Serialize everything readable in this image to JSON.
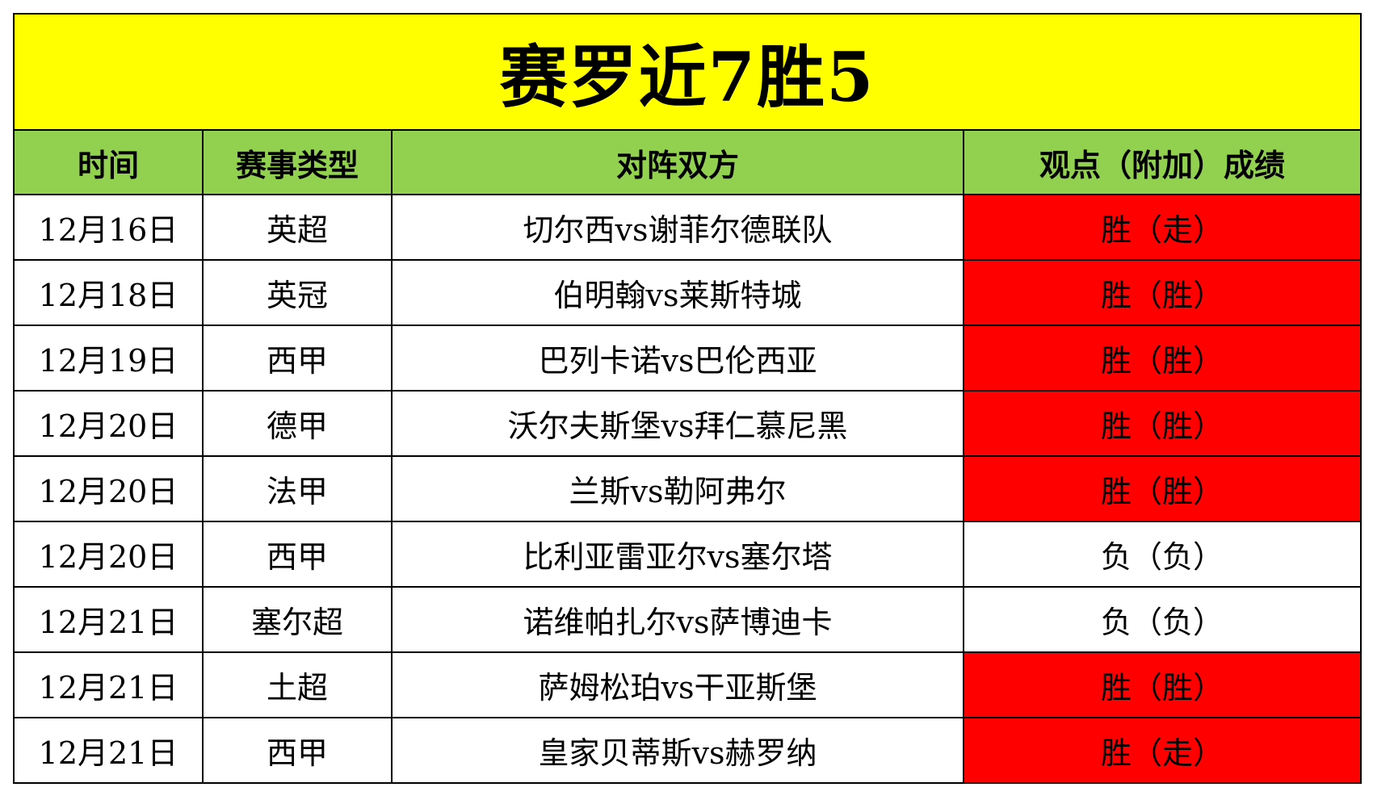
{
  "title": "赛罗近7胜5",
  "headers": {
    "time": "时间",
    "event_type": "赛事类型",
    "matchup": "对阵双方",
    "result": "观点（附加）成绩"
  },
  "colors": {
    "title_bg": "#ffff00",
    "header_bg": "#92d050",
    "win_bg": "#ff0000",
    "loss_bg": "#ffffff"
  },
  "rows": [
    {
      "time": "12月16日",
      "event_type": "英超",
      "matchup": "切尔西vs谢菲尔德联队",
      "result": "胜（走）"
    },
    {
      "time": "12月18日",
      "event_type": "英冠",
      "matchup": "伯明翰vs莱斯特城",
      "result": "胜（胜）"
    },
    {
      "time": "12月19日",
      "event_type": "西甲",
      "matchup": "巴列卡诺vs巴伦西亚",
      "result": "胜（胜）"
    },
    {
      "time": "12月20日",
      "event_type": "德甲",
      "matchup": "沃尔夫斯堡vs拜仁慕尼黑",
      "result": "胜（胜）"
    },
    {
      "time": "12月20日",
      "event_type": "法甲",
      "matchup": "兰斯vs勒阿弗尔",
      "result": "胜（胜）"
    },
    {
      "time": "12月20日",
      "event_type": "西甲",
      "matchup": "比利亚雷亚尔vs塞尔塔",
      "result": "负（负）"
    },
    {
      "time": "12月21日",
      "event_type": "塞尔超",
      "matchup": "诺维帕扎尔vs萨博迪卡",
      "result": "负（负）"
    },
    {
      "time": "12月21日",
      "event_type": "土超",
      "matchup": "萨姆松珀vs干亚斯堡",
      "result": "胜（胜）"
    },
    {
      "time": "12月21日",
      "event_type": "西甲",
      "matchup": "皇家贝蒂斯vs赫罗纳",
      "result": "胜（走）"
    }
  ]
}
